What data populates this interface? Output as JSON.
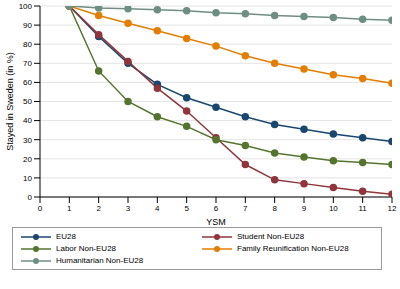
{
  "chart_data": {
    "type": "line",
    "x_label": "YSM",
    "y_label": "Stayed in Sweden (in %)",
    "x": [
      1,
      2,
      3,
      4,
      5,
      6,
      7,
      8,
      9,
      10,
      11,
      12
    ],
    "xlim": [
      0,
      12
    ],
    "xticks": [
      0,
      1,
      2,
      3,
      4,
      5,
      6,
      7,
      8,
      9,
      10,
      11,
      12
    ],
    "ylim": [
      0,
      100
    ],
    "yticks": [
      0,
      10,
      20,
      30,
      40,
      50,
      60,
      70,
      80,
      90,
      100
    ],
    "grid": true,
    "legend": "bottom",
    "marker": "circle",
    "series": [
      {
        "name": "EU28",
        "color": "#1a476f",
        "values": [
          100,
          84,
          70,
          59,
          52,
          47,
          42,
          38,
          35.5,
          33,
          31,
          29
        ]
      },
      {
        "name": "Student Non-EU28",
        "color": "#90353b",
        "values": [
          100,
          85,
          71,
          57,
          45,
          31,
          17,
          9,
          7,
          5,
          3,
          1.5
        ]
      },
      {
        "name": "Labor Non-EU28",
        "color": "#55752f",
        "values": [
          100,
          66,
          50,
          42,
          37,
          30,
          27,
          23,
          21,
          19,
          18,
          17
        ]
      },
      {
        "name": "Family Reunification Non-EU28",
        "color": "#e37e00",
        "values": [
          100,
          95,
          91,
          87,
          83,
          79,
          74,
          70,
          67,
          64,
          62,
          59.5
        ]
      },
      {
        "name": "Humanitarian Non-EU28",
        "color": "#6e8e84",
        "values": [
          100,
          99,
          98.5,
          98,
          97.5,
          96.5,
          96,
          95,
          94.5,
          94,
          93,
          92.5
        ]
      }
    ]
  }
}
